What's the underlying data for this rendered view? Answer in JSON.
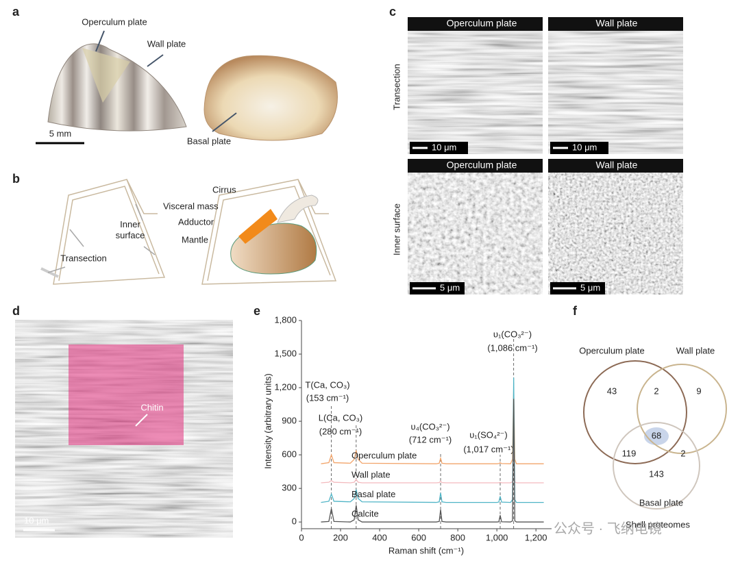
{
  "panel_labels": [
    "a",
    "b",
    "c",
    "d",
    "e",
    "f"
  ],
  "panel_a": {
    "labels": [
      "Operculum plate",
      "Wall plate",
      "Basal plate"
    ],
    "scale_bar": "5 mm"
  },
  "panel_b": {
    "labels": [
      "Cirrus",
      "Visceral mass",
      "Adductor",
      "Mantle",
      "Inner surface",
      "Transection"
    ]
  },
  "panel_c": {
    "headers": [
      "Operculum plate",
      "Wall plate",
      "Operculum plate",
      "Wall plate"
    ],
    "rows": [
      "Transection",
      "Inner surface"
    ],
    "scale_bars": [
      "10 μm",
      "10 μm",
      "5 μm",
      "5 μm"
    ]
  },
  "panel_d": {
    "label": "Chitin",
    "scale_bar": "10 μm"
  },
  "chart_data": {
    "type": "line",
    "xlabel": "Raman shift (cm⁻¹)",
    "ylabel": "Intensity (arbitrary units)",
    "xlim": [
      0,
      1280
    ],
    "ylim": [
      -60,
      1800
    ],
    "xticks": [
      0,
      200,
      400,
      600,
      800,
      {
        "value": 1000,
        "label": "1,000"
      },
      {
        "value": 1200,
        "label": "1,200"
      }
    ],
    "yticks": [
      0,
      300,
      600,
      900,
      {
        "value": 1200,
        "label": "1,200"
      },
      {
        "value": 1500,
        "label": "1,500"
      },
      {
        "value": 1800,
        "label": "1,800"
      }
    ],
    "x": [
      100,
      140,
      153,
      166,
      250,
      270,
      280,
      290,
      310,
      690,
      705,
      712,
      719,
      740,
      1000,
      1010,
      1017,
      1024,
      1070,
      1080,
      1086,
      1092,
      1100,
      1240
    ],
    "series": [
      {
        "name": "Operculum plate",
        "color": "#f2a46a",
        "values": [
          520,
          530,
          600,
          530,
          525,
          560,
          640,
          560,
          525,
          520,
          525,
          570,
          525,
          520,
          520,
          522,
          530,
          522,
          520,
          560,
          1200,
          560,
          520,
          520
        ]
      },
      {
        "name": "Wall plate",
        "color": "#f3b9bd",
        "values": [
          350,
          355,
          370,
          355,
          350,
          355,
          380,
          355,
          350,
          350,
          352,
          365,
          352,
          350,
          350,
          350,
          355,
          350,
          350,
          360,
          700,
          360,
          350,
          350
        ]
      },
      {
        "name": "Basal plate",
        "color": "#4fb4c6",
        "values": [
          175,
          185,
          250,
          185,
          180,
          210,
          290,
          210,
          180,
          175,
          180,
          260,
          180,
          175,
          175,
          178,
          230,
          178,
          175,
          200,
          1290,
          200,
          175,
          175
        ]
      },
      {
        "name": "Calcite",
        "color": "#555555",
        "values": [
          0,
          5,
          120,
          5,
          0,
          20,
          150,
          20,
          0,
          0,
          5,
          110,
          5,
          0,
          0,
          2,
          60,
          2,
          0,
          10,
          1100,
          10,
          0,
          0
        ]
      }
    ],
    "peak_lines": [
      153,
      280,
      712,
      1017,
      1086
    ],
    "annotations": [
      [
        "T(Ca, CO₃)",
        "(153 cm⁻¹)"
      ],
      [
        "L(Ca, CO₃)",
        "(280 cm⁻¹)"
      ],
      [
        "υ₄(CO₃²⁻)",
        "(712 cm⁻¹)"
      ],
      [
        "υ₁(SO₄²⁻)",
        "(1,017 cm⁻¹)"
      ],
      [
        "υ₁(CO₃²⁻)",
        "(1,086 cm⁻¹)"
      ]
    ]
  },
  "venn": {
    "sets": [
      {
        "name": "Operculum plate",
        "color": "#8c6a55"
      },
      {
        "name": "Wall plate",
        "color": "#c9b48e"
      },
      {
        "name": "Basal plate",
        "color": "#cfc6bd"
      }
    ],
    "regions": {
      "operculum_only": 43,
      "wall_only": 9,
      "basal_only": 143,
      "operculum_wall": 2,
      "operculum_basal": 119,
      "wall_basal": 2,
      "all": 68
    },
    "caption": "Shell proteomes"
  },
  "watermark": "公众号 · 飞纳电镜"
}
